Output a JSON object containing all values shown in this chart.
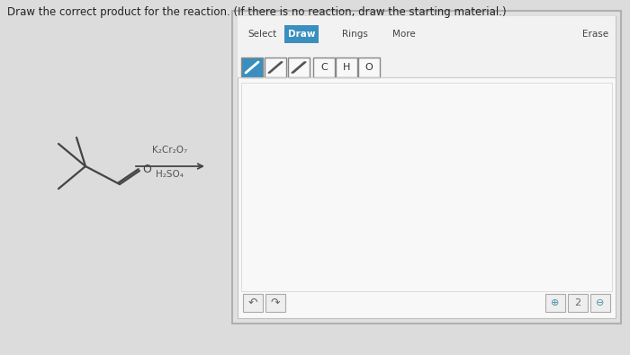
{
  "title": "Draw the correct product for the reaction. (If there is no reaction, draw the starting material.)",
  "title_fontsize": 8.5,
  "background_color": "#dcdcdc",
  "panel_bg_outer": "#e8e8e8",
  "panel_bg_inner": "#f0f0f0",
  "panel_border_color": "#bbbbbb",
  "toolbar_bg": "#f5f5f5",
  "draw_btn_color": "#3a8fbf",
  "draw_btn_text": "Draw",
  "select_text": "Select",
  "rings_text": "Rings",
  "more_text": "More",
  "erase_text": "Erase",
  "atom_labels": [
    "C",
    "H",
    "O"
  ],
  "reagent_line1": "K₂Cr₂O₇",
  "reagent_line2": "H₂SO₄",
  "mol_color": "#444444",
  "reagent_color": "#555555",
  "undo_icon": "↶",
  "redo_icon": "↷",
  "zoom_in_icon": "🔍",
  "zoom_2_label": "2",
  "zoom_out_icon": "🔍",
  "btn_border_color": "#aaaaaa",
  "btn_bg": "#f0f0f0",
  "icon_color": "#4a8fa8"
}
